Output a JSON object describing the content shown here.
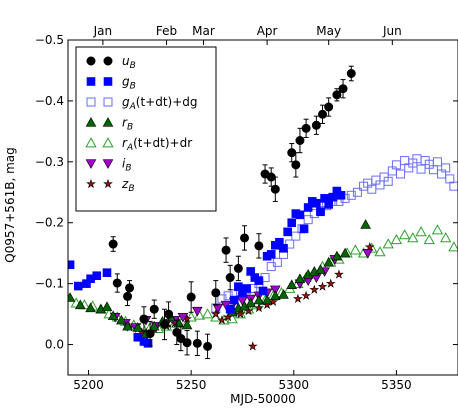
{
  "chart_data": {
    "type": "scatter",
    "xlabel": "MJD-50000",
    "ylabel": "Q0957+561B, mag",
    "xlim": [
      5190,
      5380
    ],
    "ylim": [
      0.05,
      -0.5
    ],
    "x_ticks": [
      5200,
      5250,
      5300,
      5350
    ],
    "x_tick_labels": [
      "5200",
      "5250",
      "5300",
      "5350"
    ],
    "y_ticks": [
      0.0,
      -0.1,
      -0.2,
      -0.3,
      -0.4,
      -0.5
    ],
    "y_tick_labels": [
      "0.0",
      "−0.1",
      "−0.2",
      "−0.3",
      "−0.4",
      "−0.5"
    ],
    "months": [
      {
        "label": "Jan",
        "x": 5207
      },
      {
        "label": "Feb",
        "x": 5238
      },
      {
        "label": "Mar",
        "x": 5256
      },
      {
        "label": "Apr",
        "x": 5287
      },
      {
        "label": "May",
        "x": 5317
      },
      {
        "label": "Jun",
        "x": 5348
      }
    ],
    "legend_position": "top-left",
    "series": [
      {
        "name": "u_B",
        "label_main": "u",
        "label_sub": "B",
        "label_suffix": "",
        "marker": "circle",
        "color": "#000000",
        "filled": true,
        "errorbars": true,
        "points": [
          [
            5212,
            -0.165,
            0.012
          ],
          [
            5214,
            -0.101,
            0.015
          ],
          [
            5219,
            -0.079,
            0.015
          ],
          [
            5220,
            -0.093,
            0.012
          ],
          [
            5227,
            -0.042,
            0.02
          ],
          [
            5230,
            -0.018,
            0.02
          ],
          [
            5232,
            -0.058,
            0.015
          ],
          [
            5237,
            -0.033,
            0.025
          ],
          [
            5239,
            -0.05,
            0.02
          ],
          [
            5243,
            -0.02,
            0.02
          ],
          [
            5245,
            -0.01,
            0.02
          ],
          [
            5248,
            -0.003,
            0.02
          ],
          [
            5250,
            -0.078,
            0.025
          ],
          [
            5253,
            -0.002,
            0.02
          ],
          [
            5258,
            0.003,
            0.02
          ],
          [
            5262,
            -0.085,
            0.02
          ],
          [
            5267,
            -0.155,
            0.02
          ],
          [
            5269,
            -0.11,
            0.02
          ],
          [
            5273,
            -0.125,
            0.02
          ],
          [
            5276,
            -0.175,
            0.02
          ],
          [
            5283,
            -0.162,
            0.02
          ],
          [
            5286,
            -0.28,
            0.015
          ],
          [
            5289,
            -0.275,
            0.015
          ],
          [
            5291,
            -0.255,
            0.02
          ],
          [
            5299,
            -0.315,
            0.015
          ],
          [
            5301,
            -0.295,
            0.02
          ],
          [
            5303,
            -0.335,
            0.02
          ],
          [
            5306,
            -0.355,
            0.015
          ],
          [
            5311,
            -0.36,
            0.015
          ],
          [
            5314,
            -0.378,
            0.015
          ],
          [
            5317,
            -0.39,
            0.015
          ],
          [
            5321,
            -0.41,
            0.01
          ],
          [
            5324,
            -0.42,
            0.015
          ],
          [
            5328,
            -0.445,
            0.012
          ]
        ]
      },
      {
        "name": "g_B",
        "label_main": "g",
        "label_sub": "B",
        "label_suffix": "",
        "marker": "square",
        "color": "#0000ff",
        "filled": true,
        "errorbars": false,
        "points": [
          [
            5191,
            -0.131
          ],
          [
            5195,
            -0.096
          ],
          [
            5199,
            -0.1
          ],
          [
            5201,
            -0.108
          ],
          [
            5204,
            -0.113
          ],
          [
            5209,
            -0.118
          ],
          [
            5224,
            -0.012
          ],
          [
            5227,
            -0.005
          ],
          [
            5229,
            -0.002
          ],
          [
            5269,
            -0.058
          ],
          [
            5271,
            -0.073
          ],
          [
            5273,
            -0.095
          ],
          [
            5275,
            -0.085
          ],
          [
            5277,
            -0.092
          ],
          [
            5279,
            -0.12
          ],
          [
            5281,
            -0.11
          ],
          [
            5283,
            -0.105
          ],
          [
            5285,
            -0.088
          ],
          [
            5287,
            -0.145
          ],
          [
            5289,
            -0.148
          ],
          [
            5291,
            -0.163
          ],
          [
            5293,
            -0.168
          ],
          [
            5295,
            -0.158
          ],
          [
            5297,
            -0.185
          ],
          [
            5299,
            -0.2
          ],
          [
            5301,
            -0.215
          ],
          [
            5303,
            -0.213
          ],
          [
            5305,
            -0.19
          ],
          [
            5307,
            -0.225
          ],
          [
            5309,
            -0.235
          ],
          [
            5311,
            -0.232
          ],
          [
            5313,
            -0.218
          ],
          [
            5315,
            -0.24
          ],
          [
            5317,
            -0.23
          ],
          [
            5319,
            -0.242
          ],
          [
            5321,
            -0.252
          ],
          [
            5323,
            -0.245
          ]
        ]
      },
      {
        "name": "g_A(t+dt)+dg",
        "label_main": "g",
        "label_sub": "A",
        "label_suffix": "(t+dt)+dg",
        "marker": "square",
        "color": "#6a6aff",
        "filled": false,
        "errorbars": false,
        "points": [
          [
            5262,
            -0.06
          ],
          [
            5265,
            -0.075
          ],
          [
            5268,
            -0.08
          ],
          [
            5271,
            -0.083
          ],
          [
            5274,
            -0.087
          ],
          [
            5277,
            -0.09
          ],
          [
            5280,
            -0.092
          ],
          [
            5283,
            -0.1
          ],
          [
            5286,
            -0.11
          ],
          [
            5289,
            -0.128
          ],
          [
            5292,
            -0.135
          ],
          [
            5295,
            -0.148
          ],
          [
            5298,
            -0.165
          ],
          [
            5301,
            -0.178
          ],
          [
            5304,
            -0.19
          ],
          [
            5307,
            -0.205
          ],
          [
            5310,
            -0.215
          ],
          [
            5313,
            -0.22
          ],
          [
            5316,
            -0.228
          ],
          [
            5319,
            -0.235
          ],
          [
            5322,
            -0.235
          ],
          [
            5325,
            -0.24
          ],
          [
            5328,
            -0.245
          ],
          [
            5331,
            -0.25
          ],
          [
            5334,
            -0.26
          ],
          [
            5336,
            -0.265
          ],
          [
            5338,
            -0.255
          ],
          [
            5340,
            -0.27
          ],
          [
            5342,
            -0.262
          ],
          [
            5344,
            -0.275
          ],
          [
            5346,
            -0.268
          ],
          [
            5348,
            -0.285
          ],
          [
            5350,
            -0.295
          ],
          [
            5352,
            -0.28
          ],
          [
            5354,
            -0.302
          ],
          [
            5356,
            -0.29
          ],
          [
            5358,
            -0.298
          ],
          [
            5360,
            -0.305
          ],
          [
            5362,
            -0.288
          ],
          [
            5364,
            -0.302
          ],
          [
            5366,
            -0.296
          ],
          [
            5368,
            -0.287
          ],
          [
            5370,
            -0.3
          ],
          [
            5372,
            -0.28
          ],
          [
            5374,
            -0.29
          ],
          [
            5376,
            -0.272
          ],
          [
            5378,
            -0.26
          ]
        ]
      },
      {
        "name": "r_B",
        "label_main": "r",
        "label_sub": "B",
        "label_suffix": "",
        "marker": "triangle-up",
        "color": "#006400",
        "filled": true,
        "errorbars": false,
        "points": [
          [
            5191,
            -0.077
          ],
          [
            5196,
            -0.065
          ],
          [
            5201,
            -0.06
          ],
          [
            5206,
            -0.058
          ],
          [
            5209,
            -0.062
          ],
          [
            5212,
            -0.047
          ],
          [
            5216,
            -0.04
          ],
          [
            5219,
            -0.03
          ],
          [
            5224,
            -0.028
          ],
          [
            5228,
            -0.018
          ],
          [
            5232,
            -0.03
          ],
          [
            5236,
            -0.038
          ],
          [
            5240,
            -0.045
          ],
          [
            5244,
            -0.035
          ],
          [
            5248,
            -0.032
          ],
          [
            5270,
            -0.053
          ],
          [
            5273,
            -0.06
          ],
          [
            5276,
            -0.063
          ],
          [
            5279,
            -0.068
          ],
          [
            5283,
            -0.073
          ],
          [
            5287,
            -0.073
          ],
          [
            5291,
            -0.08
          ],
          [
            5295,
            -0.082
          ],
          [
            5299,
            -0.098
          ],
          [
            5303,
            -0.108
          ],
          [
            5307,
            -0.115
          ],
          [
            5310,
            -0.12
          ],
          [
            5313,
            -0.123
          ],
          [
            5317,
            -0.135
          ],
          [
            5321,
            -0.145
          ],
          [
            5325,
            -0.15
          ],
          [
            5335,
            -0.197
          ]
        ]
      },
      {
        "name": "r_A(t+dt)+dr",
        "label_main": "r",
        "label_sub": "A",
        "label_suffix": "(t+dt)+dr",
        "marker": "triangle-up",
        "color": "#2ca02c",
        "filled": false,
        "errorbars": false,
        "points": [
          [
            5194,
            -0.068
          ],
          [
            5198,
            -0.065
          ],
          [
            5202,
            -0.063
          ],
          [
            5206,
            -0.058
          ],
          [
            5210,
            -0.05
          ],
          [
            5214,
            -0.045
          ],
          [
            5218,
            -0.038
          ],
          [
            5222,
            -0.032
          ],
          [
            5226,
            -0.03
          ],
          [
            5230,
            -0.028
          ],
          [
            5234,
            -0.026
          ],
          [
            5238,
            -0.03
          ],
          [
            5242,
            -0.035
          ],
          [
            5246,
            -0.04
          ],
          [
            5250,
            -0.045
          ],
          [
            5254,
            -0.048
          ],
          [
            5258,
            -0.05
          ],
          [
            5262,
            -0.045
          ],
          [
            5266,
            -0.04
          ],
          [
            5270,
            -0.042
          ],
          [
            5274,
            -0.05
          ],
          [
            5278,
            -0.058
          ],
          [
            5282,
            -0.065
          ],
          [
            5286,
            -0.072
          ],
          [
            5290,
            -0.08
          ],
          [
            5294,
            -0.085
          ],
          [
            5298,
            -0.092
          ],
          [
            5302,
            -0.1
          ],
          [
            5306,
            -0.11
          ],
          [
            5310,
            -0.118
          ],
          [
            5314,
            -0.128
          ],
          [
            5318,
            -0.135
          ],
          [
            5322,
            -0.14
          ],
          [
            5326,
            -0.15
          ],
          [
            5330,
            -0.155
          ],
          [
            5334,
            -0.15
          ],
          [
            5338,
            -0.158
          ],
          [
            5342,
            -0.152
          ],
          [
            5346,
            -0.165
          ],
          [
            5350,
            -0.172
          ],
          [
            5354,
            -0.18
          ],
          [
            5358,
            -0.175
          ],
          [
            5362,
            -0.185
          ],
          [
            5366,
            -0.172
          ],
          [
            5370,
            -0.188
          ],
          [
            5374,
            -0.175
          ],
          [
            5378,
            -0.16
          ]
        ]
      },
      {
        "name": "i_B",
        "label_main": "i",
        "label_sub": "B",
        "label_suffix": "",
        "marker": "triangle-down",
        "color": "#a000c8",
        "filled": true,
        "errorbars": false,
        "points": [
          [
            5213,
            -0.045
          ],
          [
            5218,
            -0.035
          ],
          [
            5223,
            -0.028
          ],
          [
            5228,
            -0.04
          ],
          [
            5233,
            -0.03
          ],
          [
            5238,
            -0.035
          ],
          [
            5242,
            -0.04
          ],
          [
            5246,
            -0.045
          ],
          [
            5253,
            -0.055
          ],
          [
            5263,
            -0.06
          ],
          [
            5267,
            -0.065
          ],
          [
            5271,
            -0.07
          ],
          [
            5275,
            -0.072
          ],
          [
            5279,
            -0.075
          ],
          [
            5283,
            -0.08
          ],
          [
            5287,
            -0.085
          ],
          [
            5291,
            -0.09
          ],
          [
            5303,
            -0.1
          ],
          [
            5307,
            -0.105
          ],
          [
            5311,
            -0.11
          ],
          [
            5315,
            -0.12
          ],
          [
            5320,
            -0.14
          ],
          [
            5336,
            -0.15
          ]
        ]
      },
      {
        "name": "z_B",
        "label_main": "z",
        "label_sub": "B",
        "label_suffix": "",
        "marker": "star",
        "color": "#a01010",
        "filled": true,
        "errorbars": false,
        "points": [
          [
            5220,
            -0.028
          ],
          [
            5226,
            -0.02
          ],
          [
            5232,
            -0.025
          ],
          [
            5238,
            -0.03
          ],
          [
            5242,
            -0.035
          ],
          [
            5248,
            -0.042
          ],
          [
            5262,
            -0.05
          ],
          [
            5265,
            -0.04
          ],
          [
            5268,
            -0.045
          ],
          [
            5271,
            -0.055
          ],
          [
            5274,
            -0.05
          ],
          [
            5278,
            -0.055
          ],
          [
            5280,
            0.003
          ],
          [
            5283,
            -0.06
          ],
          [
            5287,
            -0.065
          ],
          [
            5290,
            -0.07
          ],
          [
            5302,
            -0.075
          ],
          [
            5306,
            -0.08
          ],
          [
            5310,
            -0.09
          ],
          [
            5314,
            -0.095
          ],
          [
            5318,
            -0.1
          ],
          [
            5322,
            -0.115
          ],
          [
            5337,
            -0.16
          ]
        ]
      }
    ]
  }
}
